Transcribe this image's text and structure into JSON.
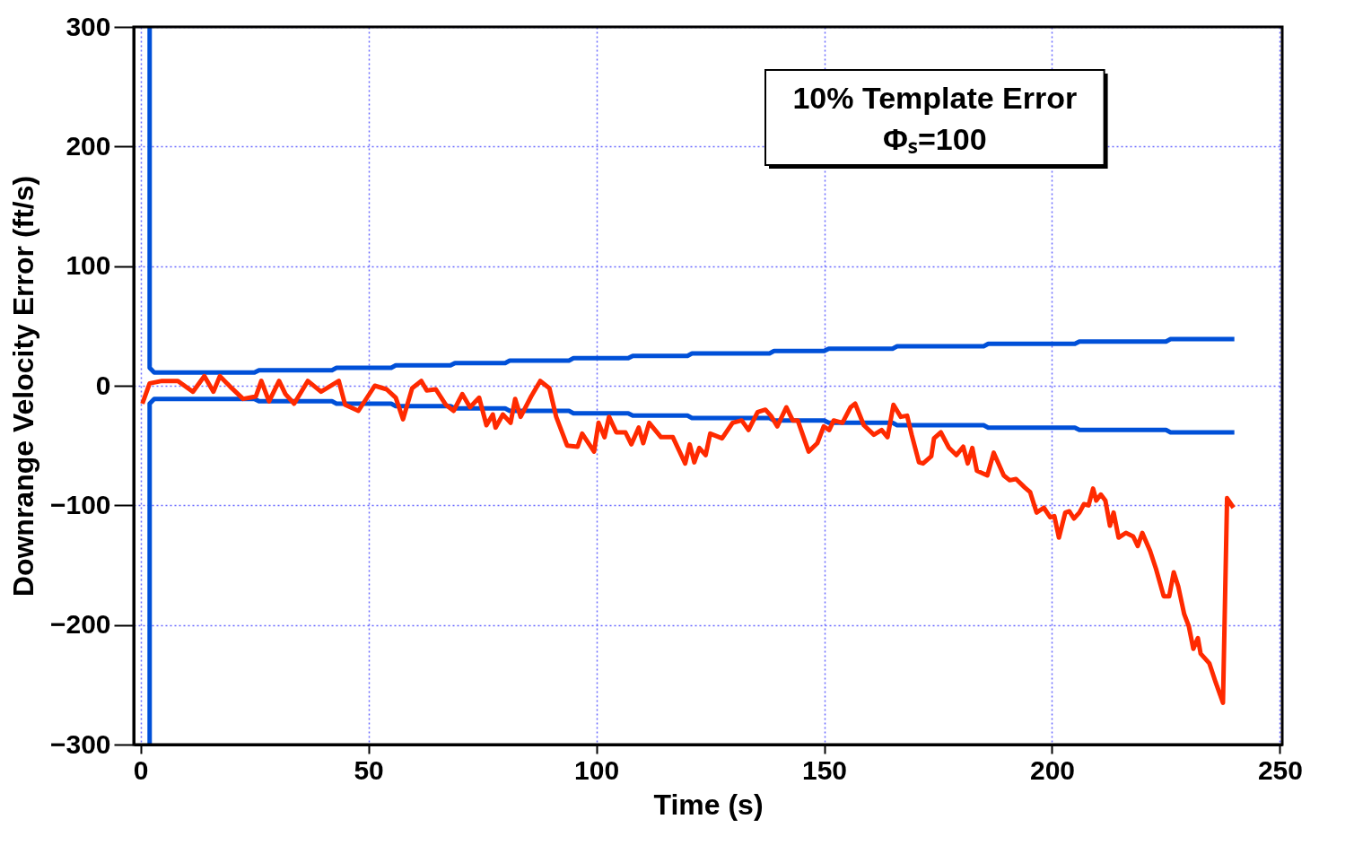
{
  "chart_data": {
    "type": "line",
    "xlabel": "Time (s)",
    "ylabel": "Downrange Velocity Error (ft/s)",
    "annotations": [
      "10% Template Error",
      "Φₛ=100"
    ],
    "xlim": [
      -1.5,
      250.5
    ],
    "ylim": [
      -300,
      300
    ],
    "xticks": [
      0,
      50,
      100,
      150,
      200,
      250
    ],
    "yticks": [
      -300,
      -200,
      -100,
      0,
      100,
      200,
      300
    ],
    "grid": true,
    "legend": false,
    "marker": "none",
    "line_style": "solid",
    "series": [
      {
        "color": "#0050d8",
        "x": [
          2,
          2,
          3,
          25,
          26,
          42,
          43,
          55,
          56,
          68,
          69,
          80,
          81,
          94,
          95,
          107,
          108,
          120,
          121,
          138,
          139,
          150,
          151,
          165,
          166,
          185,
          186,
          205,
          206,
          225,
          226,
          240
        ],
        "values": [
          300,
          15,
          11,
          11,
          13,
          13,
          15,
          15,
          17,
          17,
          19,
          19,
          21,
          21,
          23,
          23,
          25,
          25,
          27,
          27,
          29,
          29,
          31,
          31,
          33,
          33,
          35,
          35,
          37,
          37,
          39,
          39
        ]
      },
      {
        "color": "#0050d8",
        "x": [
          2,
          2,
          3,
          25,
          26,
          42,
          43,
          55,
          56,
          68,
          69,
          80,
          81,
          94,
          95,
          107,
          108,
          120,
          121,
          138,
          139,
          150,
          151,
          165,
          166,
          185,
          186,
          205,
          206,
          225,
          226,
          240
        ],
        "values": [
          -300,
          -15,
          -11,
          -11,
          -13,
          -13,
          -15,
          -15,
          -17,
          -17,
          -19,
          -19,
          -21,
          -21,
          -23,
          -23,
          -25,
          -25,
          -27,
          -27,
          -29,
          -29,
          -31,
          -31,
          -33,
          -33,
          -35,
          -35,
          -37,
          -37,
          -39,
          -39
        ]
      },
      {
        "color": "#ff2a00",
        "x": [
          0.4,
          2,
          4.7,
          8.2,
          11.5,
          14,
          16,
          17.4,
          20,
          22.5,
          25.3,
          26.5,
          28.2,
          30.4,
          31.8,
          33.7,
          36.7,
          39.6,
          43.5,
          44.9,
          47.8,
          51.4,
          54,
          56,
          57.6,
          59.6,
          61.6,
          62.8,
          64.8,
          67,
          68.7,
          70.6,
          72.3,
          74.3,
          75.9,
          77.3,
          77.9,
          79.5,
          81.2,
          82.2,
          83.4,
          85.7,
          87.7,
          89.7,
          91.2,
          93.6,
          95.9,
          96.9,
          99.5,
          100.5,
          101.8,
          102.8,
          104.4,
          106.4,
          107.7,
          109.3,
          110.3,
          111.6,
          114.2,
          116.8,
          119.5,
          120.5,
          121.5,
          122.6,
          124,
          125,
          127.6,
          129.9,
          131.9,
          133.4,
          135.4,
          137.1,
          138.3,
          139.7,
          141.7,
          143.1,
          144.2,
          146.6,
          148.5,
          149.9,
          151.1,
          152.1,
          154,
          155.8,
          156.8,
          158.7,
          160.9,
          162.6,
          163.9,
          165.2,
          166.8,
          168.2,
          169.2,
          170.8,
          171.7,
          173.5,
          174.1,
          175.6,
          177.4,
          179,
          180.5,
          181.5,
          182.5,
          183.5,
          185.8,
          187.2,
          189.4,
          190.7,
          192.1,
          194,
          195.2,
          196.6,
          198.2,
          199.6,
          200.5,
          201.5,
          202.9,
          203.8,
          204.8,
          206,
          207,
          208,
          209,
          209.7,
          210.7,
          211.7,
          212.7,
          213.5,
          214.6,
          216.2,
          217.8,
          218.8,
          219.8,
          221.5,
          222.8,
          224.5,
          225.7,
          226.7,
          227.7,
          229,
          230,
          231,
          232,
          232.6,
          234.5,
          235.9,
          237.5,
          238.4,
          239.8
        ],
        "values": [
          -15,
          2,
          4,
          4,
          -5,
          8,
          -5,
          8,
          -2,
          -11,
          -9,
          4,
          -13,
          4,
          -7,
          -15,
          4,
          -5,
          4,
          -16,
          -21,
          0,
          -3,
          -10,
          -28,
          -2,
          4,
          -4,
          -3,
          -16,
          -21,
          -7,
          -18,
          -10,
          -33,
          -24,
          -35,
          -24,
          -31,
          -11,
          -26,
          -9,
          4,
          -2,
          -26,
          -50,
          -51,
          -40,
          -55,
          -31,
          -43,
          -26,
          -39,
          -39,
          -49,
          -35,
          -48,
          -31,
          -43,
          -43,
          -65,
          -49,
          -64,
          -52,
          -58,
          -40,
          -44,
          -31,
          -29,
          -37,
          -22,
          -20,
          -25,
          -34,
          -18,
          -29,
          -29,
          -55,
          -48,
          -34,
          -37,
          -29,
          -31,
          -18,
          -15,
          -33,
          -41,
          -37,
          -43,
          -16,
          -26,
          -25,
          -41,
          -64,
          -65,
          -59,
          -44,
          -39,
          -52,
          -58,
          -51,
          -65,
          -52,
          -71,
          -75,
          -56,
          -75,
          -79,
          -78,
          -85,
          -89,
          -106,
          -102,
          -110,
          -109,
          -127,
          -106,
          -105,
          -111,
          -106,
          -99,
          -100,
          -86,
          -96,
          -91,
          -96,
          -117,
          -106,
          -127,
          -123,
          -126,
          -134,
          -123,
          -138,
          -153,
          -176,
          -176,
          -156,
          -168,
          -191,
          -201,
          -220,
          -211,
          -224,
          -232,
          -248,
          -265,
          -94,
          -102
        ]
      }
    ]
  }
}
